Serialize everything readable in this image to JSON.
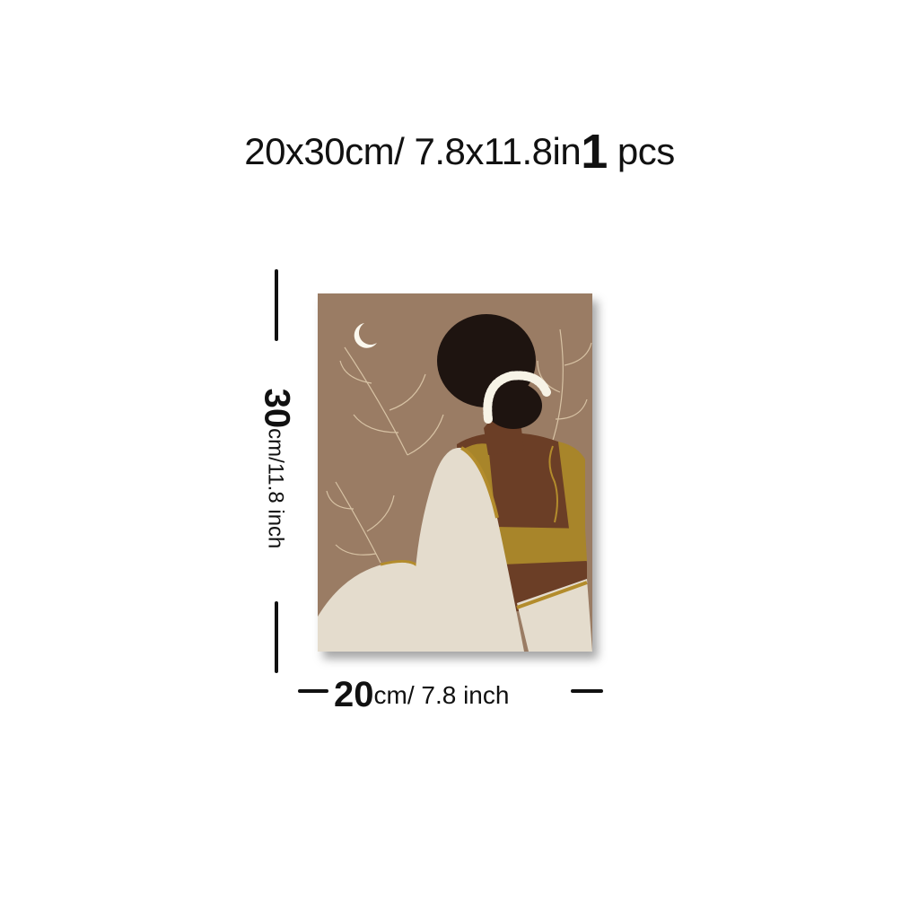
{
  "title": {
    "size_text": "20x30cm/ 7.8x11.8in",
    "qty_number": "1",
    "qty_unit": "pcs"
  },
  "height_dim": {
    "number": "30",
    "unit": "cm/11.8 inch"
  },
  "width_dim": {
    "number": "20",
    "unit": "cm/ 7.8 inch"
  },
  "artwork": {
    "subject": "woman in cream saree with jasmine bun, back view",
    "colors": {
      "background": "#9a7c64",
      "saree": "#e4dccd",
      "border_gold": "#b38c2c",
      "blouse": "#a8852a",
      "skin": "#6b3e26",
      "hair": "#1e1410",
      "flowers": "#f7f3e6",
      "leaf_lines": "#d7c2a4",
      "moon": "#fbf8ee"
    }
  }
}
